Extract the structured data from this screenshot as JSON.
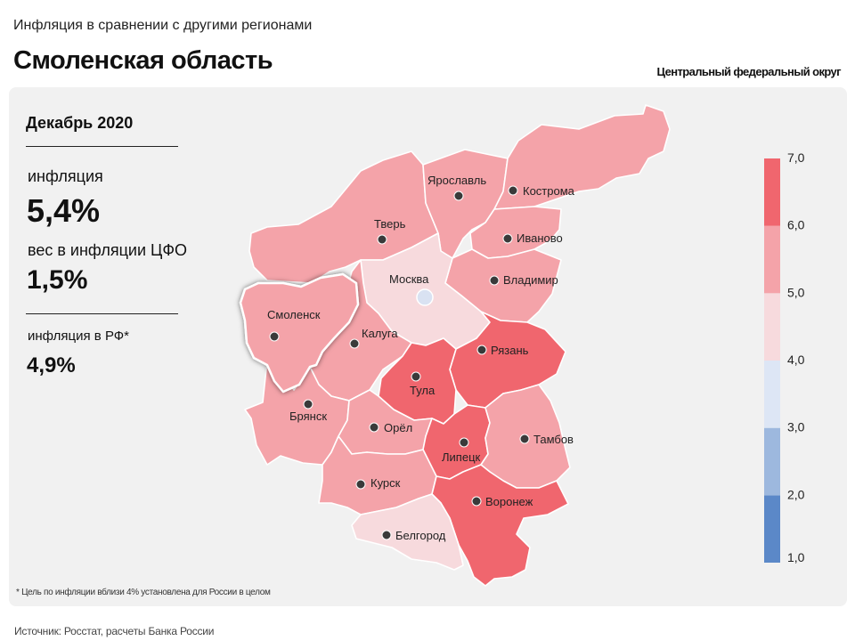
{
  "header": {
    "subtitle": "Инфляция в сравнении с другими регионами",
    "title": "Смоленская область",
    "district": "Центральный федеральный округ"
  },
  "stats": {
    "period": "Декабрь 2020",
    "inflation_label": "инфляция",
    "inflation_value": "5,4%",
    "weight_label": "вес в инфляции ЦФО",
    "weight_value": "1,5%",
    "rf_label": "инфляция в РФ*",
    "rf_value": "4,9%"
  },
  "footnote": "* Цель по инфляции вблизи 4% установлена для России в целом",
  "source": "Источник: Росстат, расчеты Банка России",
  "colors": {
    "panel_bg": "#f1f1f1",
    "bin_1_2": "#5b88c8",
    "bin_2_3": "#9db8de",
    "bin_3_4": "#dde6f5",
    "bin_4_5": "#f7dadd",
    "bin_5_6": "#f4a3a9",
    "bin_6_7": "#f0666e",
    "dot": "#3a3a3a",
    "highlight_border": "#ffffff"
  },
  "legend": {
    "ticks": [
      "1,0",
      "2,0",
      "3,0",
      "4,0",
      "5,0",
      "6,0",
      "7,0"
    ]
  },
  "map": {
    "highlighted_region": "Смоленск",
    "regions": [
      {
        "name": "Смоленск",
        "bin": "5-6"
      },
      {
        "name": "Тверь",
        "bin": "5-6"
      },
      {
        "name": "Ярославль",
        "bin": "5-6"
      },
      {
        "name": "Кострома",
        "bin": "5-6"
      },
      {
        "name": "Иваново",
        "bin": "5-6"
      },
      {
        "name": "Владимир",
        "bin": "5-6"
      },
      {
        "name": "Москва",
        "bin": "4-5"
      },
      {
        "name": "Калуга",
        "bin": "5-6"
      },
      {
        "name": "Рязань",
        "bin": "6-7"
      },
      {
        "name": "Тула",
        "bin": "6-7"
      },
      {
        "name": "Брянск",
        "bin": "5-6"
      },
      {
        "name": "Орёл",
        "bin": "5-6"
      },
      {
        "name": "Липецк",
        "bin": "6-7"
      },
      {
        "name": "Тамбов",
        "bin": "5-6"
      },
      {
        "name": "Курск",
        "bin": "5-6"
      },
      {
        "name": "Воронеж",
        "bin": "6-7"
      },
      {
        "name": "Белгород",
        "bin": "4-5"
      }
    ]
  }
}
